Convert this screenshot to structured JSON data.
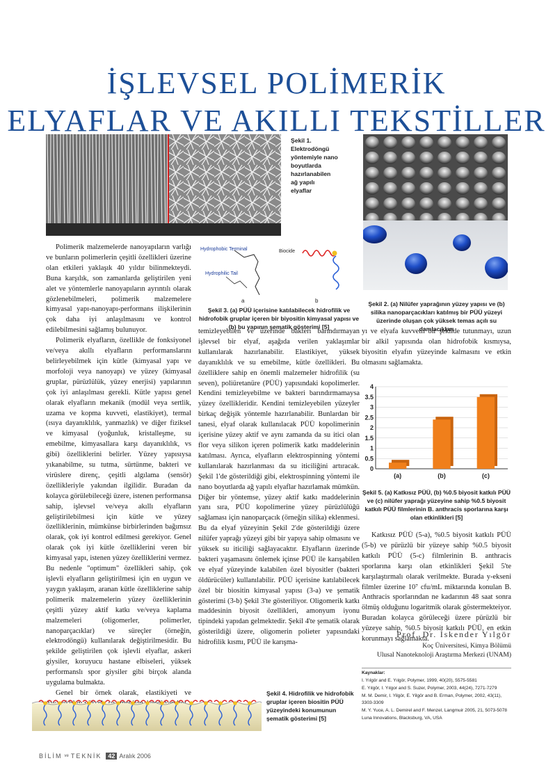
{
  "title": {
    "line1": "İŞLEVSEL POLİMERİK",
    "line2": "ELYAFLAR VE AKILLI TEKSTİLLER"
  },
  "fig1": {
    "caption": "Şekil 1.\nElektrodöngü\nyöntemiyle nano\nboyutlarda\nhazırlanabilen\nağ yapılı\nelyaflar"
  },
  "fig2": {
    "caption": "Şekil 2. (a) Nilüfer yaprağının yüzey yapısı ve (b) silika nanoparçacıkları katılmış bir PÜÜ yüzeyi üzerinde oluşan çok yüksek temas açılı su damlacıkları"
  },
  "fig3": {
    "label_terminal": "Hydrophobic Terminal",
    "label_tail": "Hydrophilic Tail",
    "label_biocide": "Biocide",
    "label_a": "a",
    "label_b": "b",
    "caption": "Şekil 3. (a) PÜÜ içerisine katılabilecek hidrofilik ve hidrofobik gruplar içeren bir biyositin kimyasal yapısı ve (b) bu yapının şematik gösterimi [5]"
  },
  "fig4": {
    "caption": "Şekil 4. Hidrofilik ve hidrofobik gruplar içeren biositin PÜÜ yüzeyindeki konumunun şematik gösterimi [5]"
  },
  "fig5": {
    "caption": "Şekil 5. (a) Katkısız PÜÜ, (b) %0.5 biyosit katkılı PÜÜ ve (c) nilüfer yaprağı yüzeyine sahip %0.5 biyosit katkılı PÜÜ filmlerinin B. anthracis sporlarına karşı olan etkinlikleri [5]"
  },
  "chart_data": {
    "type": "bar",
    "categories": [
      "(a)",
      "(b)",
      "(c)"
    ],
    "values": [
      0.3,
      2.4,
      3.5
    ],
    "yticks": [
      "0",
      "0.5",
      "1",
      "1.5",
      "2",
      "2.5",
      "3",
      "3.5",
      "4"
    ],
    "ylim": [
      0,
      4
    ],
    "title": "",
    "xlabel": "",
    "ylabel": "",
    "bar_color": "#f07f1b"
  },
  "col1": {
    "p1": "Polimerik malzemelerde nanoyapıların varlığı ve bunların polimerlerin çeşitli özellikleri üzerine olan etkileri yaklaşık 40 yıldır bilinmekteydi. Buna karşılık, son zamanlarda geliştirilen yeni alet ve yöntemlerle nanoyapıların ayrıntılı olarak gözlenebilmeleri, polimerik malzemelere kimyasal yapı-nanoyapı-performans ilişkilerinin çok daha iyi anlaşılmasını ve kontrol edilebilmesini sağlamış bulunuyor.",
    "p2": "Polimerik elyafların, özellikle de fonksiyonel ve/veya akıllı elyafların performanslarını belirleyebilmek için kütle (kimyasal yapı ve morfoloji veya nanoyapı) ve yüzey (kimyasal gruplar, pürüzlülük, yüzey enerjisi) yapılarının çok iyi anlaşılması gerekli. Kütle yapısı genel olarak elyafların mekanik (modül veya sertlik, uzama ve kopma kuvveti, elastikiyet), termal (ısıya dayanıklılık, yanmazlık) ve diğer fiziksel ve kimyasal (yoğunluk, kristalleşme, su emebilme, kimyasallara karşı dayanıklılık, vs gibi) özelliklerini belirler. Yüzey yapısıysa yıkanabilme, su tutma, sürtünme, bakteri ve virüslere direnç, çeşitli algılama (sensör) özellikleriyle yakından ilgilidir. Buradan da kolayca görülebileceği üzere, istenen performansa sahip, işlevsel ve/veya akıllı elyafların geliştirilebilmesi için kütle ve yüzey özelliklerinin, mümkünse birbirlerinden bağımsız olarak, çok iyi kontrol edilmesi gerekiyor. Genel olarak çok iyi kütle özelliklerini veren bir kimyasal yapı, istenen yüzey özelliklerini vermez. Bu nedenle \"optimum\" özellikleri sahip, çok işlevli elyafların geliştirilmesi için en uygun ve yaygın yaklaşım, aranan kütle özelliklerine sahip polimerik malzemelerin yüzey özelliklerinin çeşitli yüzey aktif katkı ve/veya kaplama malzemeleri (oligomerler, polimerler, nanoparçacıklar) ve süreçler (örneğin, elektrodöngü) kullanılarak değiştirilmesidir. Bu şekilde geliştirilen çok işlevli elyaflar, askeri giysiler, koruyucu hastane elbiseleri, yüksek performanslı spor giysiler gibi birçok alanda uygulama bulmakta.",
    "p3": "Genel bir örnek olarak, elastikiyeti ve dayanıklılığı yüksek, su emebilen, kendi kendini"
  },
  "col2": {
    "p1": "temizleyebilen ve üzerinde bakteri barındırmayan işlevsel bir elyaf, aşağıda verilen yaklaşımlar kullanılarak hazırlanabilir. Elastikiyet, yüksek dayanıklılık ve su emebilme, kütle özellikleri. Bu özelliklere sahip en önemli malzemeler hidrofilik (su seven), poliüretanüre (PÜÜ) yapısındaki kopolimerler. Kendini temizleyebilme ve bakteri barındırmamaysa yüzey özellikleridir. Kendini temizleyebilen yüzeyler birkaç değişik yöntemle hazırlanabilir. Bunlardan bir tanesi, elyaf olarak kullanılacak PÜÜ kopolimerinin içerisine yüzey aktif ve aynı zamanda da su itici olan flor veya silikon içeren polimerik katkı maddelerinin katılması. Ayrıca, elyafların elektrospinning yöntemi kullanılarak hazırlanması da su iticiliğini artıracak. Şekil 1'de gösterildiği gibi, elektrospinning yöntemi ile nano boyutlarda ağ yapılı elyaflar hazırlamak mümkün. Diğer bir yöntemse, yüzey aktif katkı maddelerinin yanı sıra, PÜÜ kopolimerine yüzey pürüzlülüğü sağlaması için nanoparçacık (örneğin silika) eklenmesi. Bu da elyaf yüzeyinin Şekil 2'de gösterildiği üzere nilüfer yaprağı yüzeyi gibi bir yapıya sahip olmasını ve yüksek su iticiliği sağlayacaktır. Elyafların üzerinde bakteri yaşamasını önlemek içinse PÜÜ ile karışabilen ve elyaf yüzeyinde kalabilen özel biyositler (bakteri öldürücüler) kullanılabilir. PÜÜ içerisine katılabilecek özel bir biositin kimyasal yapısı (3-a) ve şematik gösterimi (3-b) Şekil 3'te gösteriliyor. Oligomerik katkı maddesinin biyosit özellikleri, amonyum iyonu tipindeki yapıdan gelmektedir. Şekil 4'te şematik olarak gösterildiği üzere, oligomerin polieter yapısındaki hidrofilik kısmı, PÜÜ ile karışma-"
  },
  "col3": {
    "p1": "yı ve elyafa kuvvetli bir şekilde tutunmayı, uzun bir alkil yapısında olan hidrofobik kısmıysa, biyositin elyafın yüzeyinde kalmasını ve etkin olmasını sağlamakta.",
    "p2": "Katkısız PÜÜ (5-a), %0.5 biyosit katkılı PÜÜ (5-b) ve pürüzlü bir yüzeye sahip %0.5 biyosit katkılı PÜÜ (5-c) filmlerinin B. anthracis sporlarına karşı olan etkinlikleri Şekil 5'te karşılaştırmalı olarak verilmekte. Burada y-ekseni filmler üzerine 10⁷ cfu/mL miktarında konulan B. Anthracis sporlarından ne kadarının 48 saat sonra ölmüş olduğunu logaritmik olarak göstermekteiyor. Buradan kolayca görüleceği üzere pürüzlü bir yüzeye sahip, %0.5 biyosit katkılı PÜÜ, en etkin korunmayı sağlamakta."
  },
  "author": {
    "name": "Prof. Dr. İskender Yılgör",
    "dept": "Koç Üniversitesi, Kimya Bölümü",
    "center": "Ulusal Nanoteknoloji Araştırma Merkezi (UNAM)"
  },
  "refs": {
    "heading": "Kaynaklar:",
    "items": [
      "I. Yılgör and E. Yılgör, Polymer, 1999, 40(20), 5575-5581",
      "E. Yılgör, I. Yılgor and S. Suzer, Polymer, 2003, 44(24), 7271-7279",
      "M. M. Demir, I. Yilgör, E. Yilgör and B. Erman, Polymer, 2002, 43(11), 3303-3309",
      "M. Y. Yuce, A. L. Demirel and F. Menzel, Langmuir 2005, 21, 5073-5078",
      "Luna Innovations, Blacksburg, VA, USA"
    ]
  },
  "footer": {
    "mag1": "BİLİM",
    "mag2": "ve",
    "mag3": "TEKNİK",
    "page": "42",
    "date": "Aralık 2006"
  }
}
